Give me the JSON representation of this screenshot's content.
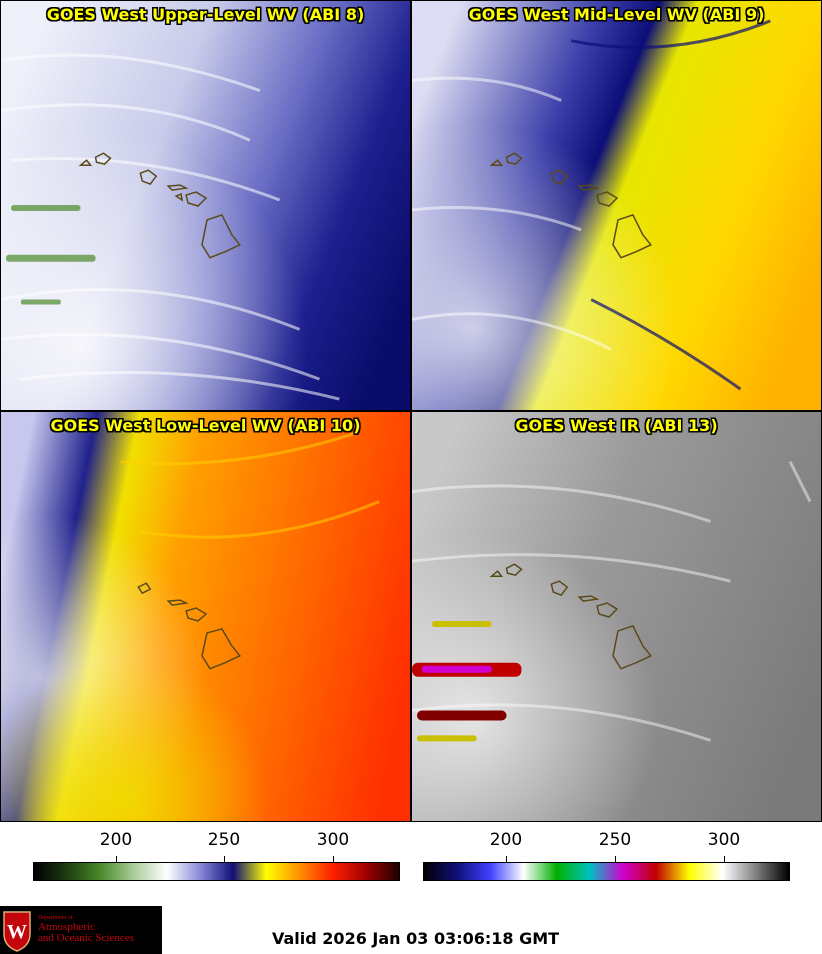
{
  "panels": [
    {
      "title": "GOES West Upper-Level WV (ABI 8)",
      "scheme": "wv-upper"
    },
    {
      "title": "GOES West Mid-Level WV (ABI 9)",
      "scheme": "wv-mid"
    },
    {
      "title": "GOES West Low-Level WV (ABI 10)",
      "scheme": "wv-low"
    },
    {
      "title": "GOES West IR (ABI 13)",
      "scheme": "ir"
    }
  ],
  "colorbars": [
    {
      "ticks": [
        "200",
        "250",
        "300"
      ],
      "colors": [
        "#000000",
        "#1f3d12",
        "#4a8a2a",
        "#a8cc98",
        "#ffffff",
        "#8a8ad8",
        "#101078",
        "#ffff00",
        "#ff9000",
        "#ff2000",
        "#a00000",
        "#200000"
      ]
    },
    {
      "ticks": [
        "200",
        "250",
        "300"
      ],
      "colors": [
        "#000000",
        "#10107a",
        "#4040ff",
        "#ffffff",
        "#00b000",
        "#00c0c0",
        "#d000d0",
        "#c00000",
        "#ffff00",
        "#ffffff",
        "#808080",
        "#000000"
      ]
    }
  ],
  "logo": {
    "dept": "Department of",
    "line1": "Atmospheric",
    "line2": "and Oceanic Sciences",
    "crest_letter": "W"
  },
  "valid_text": "Valid 2026 Jan 03 03:06:18 GMT",
  "colors": {
    "title_fill": "#ffff00",
    "coastline": "#5a4a1a",
    "logo_red": "#c5050c"
  },
  "icons": [
    "uw-crest-icon"
  ]
}
